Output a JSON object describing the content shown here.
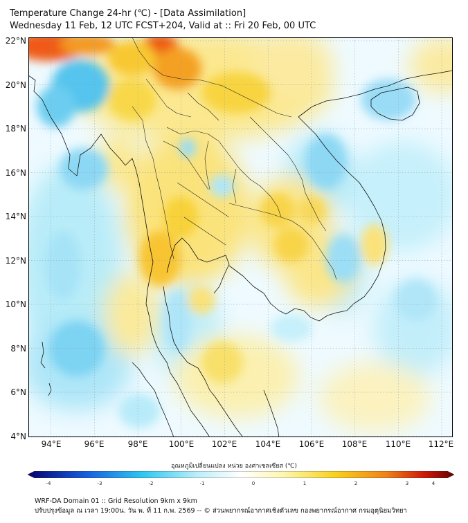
{
  "header": {
    "title_line1": "Temperature Change 24-hr (℃) - [Data Assimilation]",
    "title_line2": "Wednesday 11 Feb, 12 UTC FCST+204, Valid at :: Fri 20 Feb, 00 UTC"
  },
  "axes": {
    "lat_labels": [
      "22°N",
      "20°N",
      "18°N",
      "16°N",
      "14°N",
      "12°N",
      "10°N",
      "8°N",
      "6°N",
      "4°N"
    ],
    "lon_labels": [
      "94°E",
      "96°E",
      "98°E",
      "100°E",
      "102°E",
      "104°E",
      "106°E",
      "108°E",
      "110°E",
      "112°E"
    ]
  },
  "colorbar": {
    "label": "อุณหภูมิเปลี่ยนแปลง หน่วย องศาเซลเซียส (℃)",
    "ticks": [
      "-4",
      "-3",
      "-2",
      "-1",
      "0",
      "1",
      "2",
      "3",
      "4"
    ],
    "colors": {
      "deep_blue": "#08006e",
      "blue": "#1560e0",
      "cyan": "#2ec8f0",
      "light_cyan": "#bfeefa",
      "white": "#ffffff",
      "light_yellow": "#fff6b0",
      "yellow": "#f8d21e",
      "orange": "#f08418",
      "red": "#d01808",
      "dark_red": "#640000"
    }
  },
  "footer": {
    "line1": "WRF-DA Domain 01 :: Grid Resolution 9km x 9km",
    "line2": "ปรับปรุงข้อมูล ณ เวลา 19:00น. วัน พ. ที่ 11 ก.พ. 2569 -- © ส่วนพยากรณ์อากาศเชิงตัวเลข กองพยากรณ์อากาศ กรมอุตุนิยมวิทยา"
  }
}
